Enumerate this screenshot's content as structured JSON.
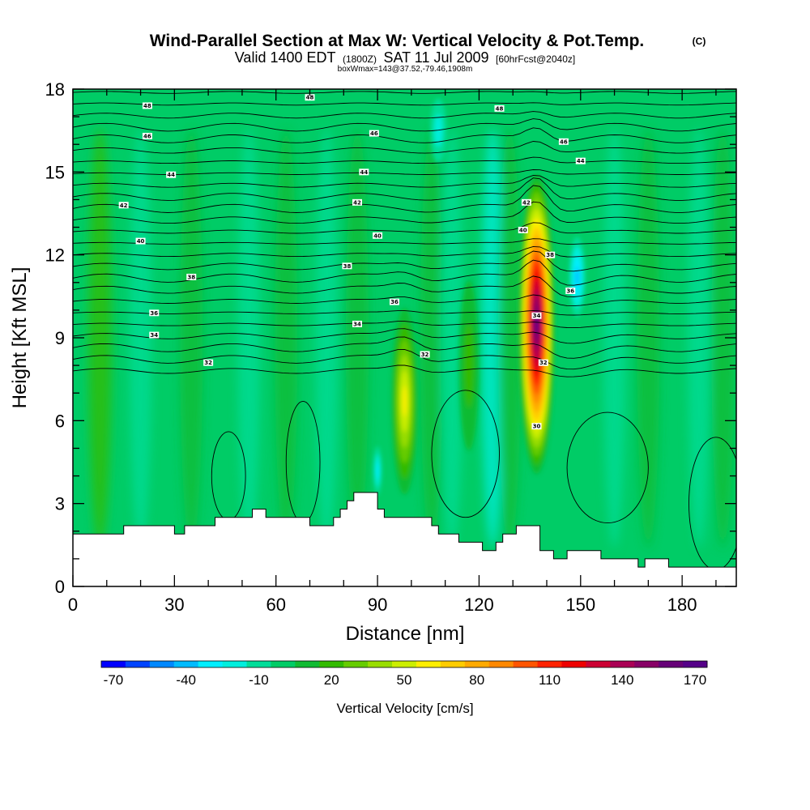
{
  "title": {
    "main": "Wind-Parallel Section at Max W: Vertical Velocity & Pot.Temp.",
    "copyright": "(C)",
    "valid_prefix": "Valid 1400 EDT",
    "valid_utc": "(1800Z)",
    "valid_date": "SAT 11 Jul 2009",
    "forecast": "[60hrFcst@2040z]",
    "boxline": "boxWmax=143@37.52,-79.46,1908m"
  },
  "chart_data": {
    "type": "heatmap",
    "xlabel": "Distance [nm]",
    "ylabel": "Height [Kft MSL]",
    "xlim": [
      0,
      196
    ],
    "ylim": [
      0,
      18
    ],
    "x_ticks": [
      0,
      30,
      60,
      90,
      120,
      150,
      180
    ],
    "y_ticks": [
      0,
      3,
      6,
      9,
      12,
      15,
      18
    ],
    "grid": false,
    "colorbar": {
      "label": "Vertical Velocity [cm/s]",
      "min": -70,
      "max": 180,
      "step": 10,
      "tick_values": [
        -70,
        -40,
        -10,
        20,
        50,
        80,
        110,
        140,
        170
      ],
      "colors": [
        "#0000ff",
        "#0044ff",
        "#0088ff",
        "#00bbff",
        "#00eeff",
        "#00eedd",
        "#00dd99",
        "#00cc66",
        "#11bb33",
        "#33bb00",
        "#66cc00",
        "#99dd00",
        "#ccee00",
        "#ffee00",
        "#ffcc00",
        "#ffaa00",
        "#ff8800",
        "#ff5500",
        "#ff2200",
        "#ee0000",
        "#cc0033",
        "#aa0055",
        "#880066",
        "#660077",
        "#550088"
      ]
    },
    "terrain_kft": [
      [
        0,
        1.9
      ],
      [
        15,
        1.9
      ],
      [
        15,
        2.2
      ],
      [
        30,
        2.2
      ],
      [
        30,
        1.9
      ],
      [
        33,
        1.9
      ],
      [
        33,
        2.2
      ],
      [
        42,
        2.2
      ],
      [
        42,
        2.5
      ],
      [
        53,
        2.5
      ],
      [
        53,
        2.8
      ],
      [
        57,
        2.8
      ],
      [
        57,
        2.5
      ],
      [
        70,
        2.5
      ],
      [
        70,
        2.2
      ],
      [
        77,
        2.2
      ],
      [
        77,
        2.5
      ],
      [
        79,
        2.5
      ],
      [
        79,
        2.8
      ],
      [
        81,
        2.8
      ],
      [
        81,
        3.1
      ],
      [
        83,
        3.1
      ],
      [
        83,
        3.4
      ],
      [
        90,
        3.4
      ],
      [
        90,
        2.8
      ],
      [
        92,
        2.8
      ],
      [
        92,
        2.5
      ],
      [
        106,
        2.5
      ],
      [
        106,
        2.2
      ],
      [
        108,
        2.2
      ],
      [
        108,
        1.9
      ],
      [
        114,
        1.9
      ],
      [
        114,
        1.6
      ],
      [
        121,
        1.6
      ],
      [
        121,
        1.3
      ],
      [
        125,
        1.3
      ],
      [
        125,
        1.6
      ],
      [
        127,
        1.6
      ],
      [
        127,
        1.9
      ],
      [
        131,
        1.9
      ],
      [
        131,
        2.2
      ],
      [
        138,
        2.2
      ],
      [
        138,
        1.3
      ],
      [
        142,
        1.3
      ],
      [
        142,
        1.0
      ],
      [
        146,
        1.0
      ],
      [
        146,
        1.3
      ],
      [
        156,
        1.3
      ],
      [
        156,
        1.0
      ],
      [
        167,
        1.0
      ],
      [
        167,
        0.7
      ],
      [
        169,
        0.7
      ],
      [
        169,
        1.0
      ],
      [
        176,
        1.0
      ],
      [
        176,
        0.7
      ],
      [
        196,
        0.7
      ]
    ],
    "updrafts": [
      {
        "x": 98,
        "z": 6.7,
        "peak_cm_s": 60
      },
      {
        "x": 117,
        "z": 8.0,
        "peak_cm_s": 25
      },
      {
        "x": 137,
        "z": 9.5,
        "peak_cm_s": 170
      }
    ],
    "downdrafts": [
      {
        "x": 149,
        "z": 11.2,
        "peak_cm_s": -40
      },
      {
        "x": 90,
        "z": 4.2,
        "peak_cm_s": -30
      },
      {
        "x": 108,
        "z": 16.5,
        "peak_cm_s": -20
      }
    ],
    "isentropes_labels": [
      {
        "value": "48",
        "x": 22,
        "z": 17.4
      },
      {
        "value": "48",
        "x": 70,
        "z": 17.7
      },
      {
        "value": "48",
        "x": 126,
        "z": 17.3
      },
      {
        "value": "46",
        "x": 22,
        "z": 16.3
      },
      {
        "value": "46",
        "x": 89,
        "z": 16.4
      },
      {
        "value": "46",
        "x": 145,
        "z": 16.1
      },
      {
        "value": "44",
        "x": 29,
        "z": 14.9
      },
      {
        "value": "44",
        "x": 86,
        "z": 15.0
      },
      {
        "value": "44",
        "x": 150,
        "z": 15.4
      },
      {
        "value": "42",
        "x": 15,
        "z": 13.8
      },
      {
        "value": "42",
        "x": 84,
        "z": 13.9
      },
      {
        "value": "42",
        "x": 134,
        "z": 13.9
      },
      {
        "value": "40",
        "x": 20,
        "z": 12.5
      },
      {
        "value": "40",
        "x": 90,
        "z": 12.7
      },
      {
        "value": "40",
        "x": 133,
        "z": 12.9
      },
      {
        "value": "38",
        "x": 35,
        "z": 11.2
      },
      {
        "value": "38",
        "x": 81,
        "z": 11.6
      },
      {
        "value": "38",
        "x": 141,
        "z": 12.0
      },
      {
        "value": "36",
        "x": 24,
        "z": 9.9
      },
      {
        "value": "36",
        "x": 95,
        "z": 10.3
      },
      {
        "value": "36",
        "x": 147,
        "z": 10.7
      },
      {
        "value": "34",
        "x": 24,
        "z": 9.1
      },
      {
        "value": "34",
        "x": 84,
        "z": 9.5
      },
      {
        "value": "34",
        "x": 137,
        "z": 9.8
      },
      {
        "value": "32",
        "x": 40,
        "z": 8.1
      },
      {
        "value": "32",
        "x": 104,
        "z": 8.4
      },
      {
        "value": "32",
        "x": 139,
        "z": 8.1
      },
      {
        "value": "30",
        "x": 137,
        "z": 5.8
      }
    ]
  }
}
